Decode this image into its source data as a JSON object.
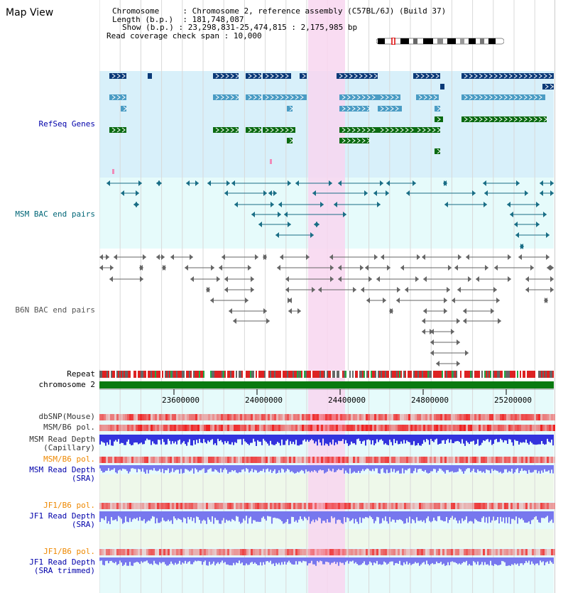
{
  "title": "Map View",
  "info": {
    "chromosome_key": "Chromosome",
    "chromosome_val": "Chromosome 2, reference assembly (C57BL/6J) (Build 37)",
    "length_key": "Length (b.p.)",
    "length_val": "181,748,087",
    "show_key": "Show (b.p.)",
    "show_val": "23,298,831-25,474,815 : 2,175,985 bp",
    "coverage_key": "Read coverage check span",
    "coverage_val": "10,000"
  },
  "tracks": {
    "refseq": "RefSeq Genes",
    "msm_bac": "MSM BAC end pairs",
    "b6n_bac": "B6N BAC end pairs",
    "repeat": "Repeat",
    "chromosome": "chromosome 2",
    "dbsnp": "dbSNP(Mouse)",
    "msm_b6_pol_1": "MSM/B6 pol.",
    "msm_depth_cap_1": "MSM Read Depth",
    "msm_depth_cap_2": "(Capillary)",
    "msm_b6_pol_2": "MSM/B6 pol.",
    "msm_depth_sra_1": "MSM Read Depth",
    "msm_depth_sra_2": "(SRA)",
    "jf1_b6_pol_1": "JF1/B6 pol.",
    "jf1_depth_sra_1": "JF1 Read Depth",
    "jf1_depth_sra_2": "(SRA)",
    "jf1_b6_pol_2": "JF1/B6 pol.",
    "jf1_depth_trim_1": "JF1 Read Depth",
    "jf1_depth_trim_2": "(SRA trimmed)"
  },
  "axis": {
    "ticks": [
      "23600000",
      "24000000",
      "24400000",
      "24800000",
      "25200000"
    ]
  },
  "colors": {
    "refseq_bg": "#d8f0fa",
    "bac_bg": "#e6fbfb",
    "highlight": "#f8d6f0",
    "gene_dark": "#0b3a78",
    "gene_mid": "#4a9cc4",
    "gene_green": "#0a6a10",
    "chrom_bar": "#0a7a10",
    "label_blue": "#0000aa",
    "label_teal": "#006677",
    "label_orange": "#ee8800",
    "depth_blue": "#3333dd",
    "depth_light": "#7777ee"
  }
}
